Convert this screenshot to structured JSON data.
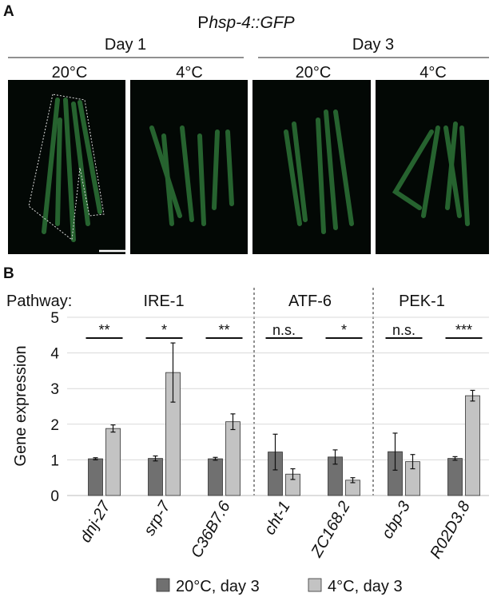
{
  "panel_a": {
    "label": "A",
    "title": {
      "prefix": "P",
      "gene": "hsp-4::GFP"
    },
    "groups": [
      {
        "label": "Day 1",
        "conditions": [
          "20°C",
          "4°C"
        ]
      },
      {
        "label": "Day 3",
        "conditions": [
          "20°C",
          "4°C"
        ]
      }
    ]
  },
  "panel_b_label": "B",
  "pathway_label": "Pathway:",
  "pathways": [
    "IRE-1",
    "ATF-6",
    "PEK-1"
  ],
  "chart_data": {
    "type": "bar",
    "y_label": "Gene expression",
    "categories": [
      "dnj-27",
      "srp-7",
      "C36B7.6",
      "cht-1",
      "ZC168.2",
      "cbp-3",
      "R02D3.8"
    ],
    "series": [
      {
        "name": "20°C, day 3",
        "color": "#707070",
        "values": [
          1.03,
          1.04,
          1.03,
          1.22,
          1.08,
          1.23,
          1.04
        ],
        "errors": [
          0.03,
          0.07,
          0.04,
          0.5,
          0.2,
          0.52,
          0.05
        ]
      },
      {
        "name": "4°C, day 3",
        "color": "#c3c3c3",
        "values": [
          1.88,
          3.45,
          2.07,
          0.6,
          0.43,
          0.95,
          2.8
        ],
        "errors": [
          0.1,
          0.83,
          0.22,
          0.15,
          0.07,
          0.2,
          0.15
        ]
      }
    ],
    "significance": [
      "**",
      "*",
      "**",
      "n.s.",
      "*",
      "n.s.",
      "***"
    ],
    "ylim": [
      0,
      5
    ],
    "yticks": [
      0,
      1,
      2,
      3,
      4,
      5
    ],
    "grid": true,
    "legend": "bottom"
  }
}
